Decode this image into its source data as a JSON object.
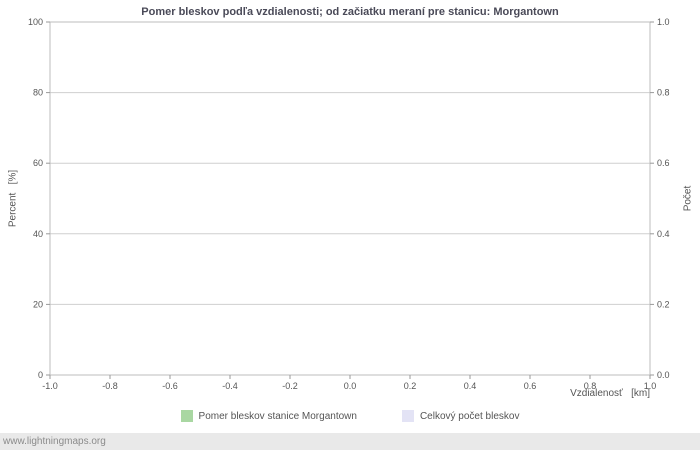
{
  "title": "Pomer bleskov podľa vzdialenosti; od začiatku meraní pre stanicu: Morgantown",
  "watermark": "www.lightningmaps.org",
  "legend": [
    {
      "label": "Pomer bleskov stanice Morgantown",
      "color": "#a9d7a2"
    },
    {
      "label": "Celkový počet bleskov",
      "color": "#e3e3f5"
    }
  ],
  "chart_data": {
    "type": "bar",
    "title": "Pomer bleskov podľa vzdialenosti; od začiatku meraní pre stanicu: Morgantown",
    "xlabel": "Vzdialenosť   [km]",
    "ylabel_left": "Percent   [%]",
    "ylabel_right": "Počet",
    "xlim": [
      -1.0,
      1.0
    ],
    "ylim_left": [
      0,
      100
    ],
    "ylim_right": [
      0.0,
      1.0
    ],
    "grid": true,
    "legend_position": "bottom",
    "x_ticks": [
      {
        "value": -1.0,
        "label": "-1.0"
      },
      {
        "value": -0.8,
        "label": "-0.8"
      },
      {
        "value": -0.6,
        "label": "-0.6"
      },
      {
        "value": -0.4,
        "label": "-0.4"
      },
      {
        "value": -0.2,
        "label": "-0.2"
      },
      {
        "value": 0.0,
        "label": "0.0"
      },
      {
        "value": 0.2,
        "label": "0.2"
      },
      {
        "value": 0.4,
        "label": "0.4"
      },
      {
        "value": 0.6,
        "label": "0.6"
      },
      {
        "value": 0.8,
        "label": "0.8"
      },
      {
        "value": 1.0,
        "label": "1.0"
      }
    ],
    "y_ticks_left": [
      {
        "value": 0,
        "label": "0"
      },
      {
        "value": 20,
        "label": "20"
      },
      {
        "value": 40,
        "label": "40"
      },
      {
        "value": 60,
        "label": "60"
      },
      {
        "value": 80,
        "label": "80"
      },
      {
        "value": 100,
        "label": "100"
      }
    ],
    "y_ticks_right": [
      {
        "value": 0.0,
        "label": "0.0"
      },
      {
        "value": 0.2,
        "label": "0.2"
      },
      {
        "value": 0.4,
        "label": "0.4"
      },
      {
        "value": 0.6,
        "label": "0.6"
      },
      {
        "value": 0.8,
        "label": "0.8"
      },
      {
        "value": 1.0,
        "label": "1.0"
      }
    ],
    "series": [
      {
        "name": "Pomer bleskov stanice Morgantown",
        "values": []
      },
      {
        "name": "Celkový počet bleskov",
        "values": []
      }
    ]
  }
}
